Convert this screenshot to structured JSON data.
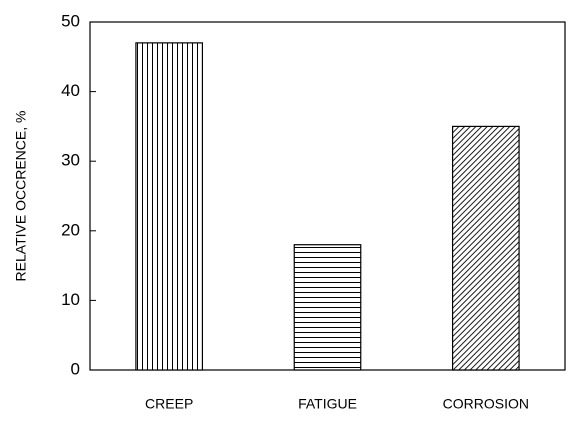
{
  "chart_data": {
    "type": "bar",
    "ylabel": "RELATIVE OCCRENCE, %",
    "categories": [
      "CREEP",
      "FATIGUE",
      "CORROSION"
    ],
    "values": [
      47,
      18,
      35
    ],
    "patterns": [
      "vertical",
      "horizontal",
      "diagonal"
    ],
    "color": "#000000",
    "ylim": [
      0,
      50
    ],
    "yticks": [
      0,
      10,
      20,
      30,
      40,
      50
    ],
    "grid": false
  }
}
